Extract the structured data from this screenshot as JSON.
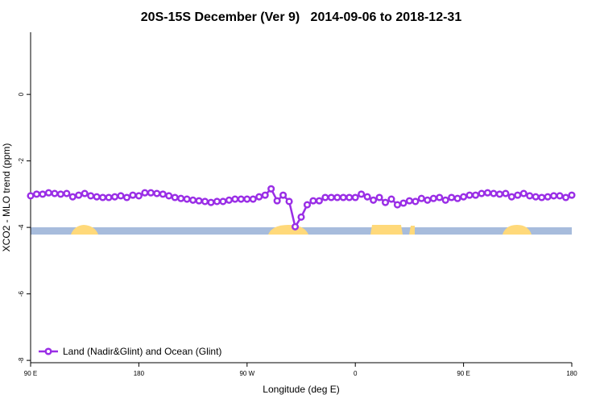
{
  "chart_data": {
    "type": "line",
    "title": "20S-15S December (Ver 9)   2014-09-06 to 2018-12-31",
    "x_label": "Longitude (deg E)",
    "y_label": "XCO2 - MLO trend (ppm)",
    "xlim": [
      90,
      540
    ],
    "xticks": [
      {
        "value": 90,
        "label": "90 E"
      },
      180,
      {
        "value": 270,
        "label": "90 W"
      },
      {
        "value": 360,
        "label": "0"
      },
      {
        "value": 450,
        "label": "90 E"
      },
      {
        "value": 540,
        "label": "180"
      }
    ],
    "ylim": [
      -8.07,
      1.87
    ],
    "yticks": [
      -8,
      -6,
      -4,
      -2,
      0
    ],
    "legend": "bottom-left",
    "x": [
      90,
      95,
      100,
      105,
      110,
      115,
      120,
      125,
      130,
      135,
      140,
      145,
      150,
      155,
      160,
      165,
      170,
      175,
      180,
      185,
      190,
      195,
      200,
      205,
      210,
      215,
      220,
      225,
      230,
      235,
      240,
      245,
      250,
      255,
      260,
      265,
      270,
      275,
      280,
      285,
      290,
      295,
      300,
      305,
      310,
      315,
      320,
      325,
      330,
      335,
      340,
      345,
      350,
      355,
      360,
      365,
      370,
      375,
      380,
      385,
      390,
      395,
      400,
      405,
      410,
      415,
      420,
      425,
      430,
      435,
      440,
      445,
      450,
      455,
      460,
      465,
      470,
      475,
      480,
      485,
      490,
      495,
      500,
      505,
      510,
      515,
      520,
      525,
      530,
      535,
      540
    ],
    "series": [
      {
        "name": "Land (Nadir&Glint) and Ocean (Glint)",
        "color": "#9a2ee6",
        "values": [
          -3.05,
          -3.0,
          -3.0,
          -2.96,
          -2.98,
          -3.0,
          -2.98,
          -3.08,
          -3.03,
          -2.98,
          -3.05,
          -3.08,
          -3.1,
          -3.1,
          -3.08,
          -3.05,
          -3.1,
          -3.03,
          -3.05,
          -2.96,
          -2.96,
          -2.98,
          -3.0,
          -3.05,
          -3.1,
          -3.13,
          -3.15,
          -3.18,
          -3.2,
          -3.22,
          -3.25,
          -3.22,
          -3.22,
          -3.18,
          -3.15,
          -3.15,
          -3.15,
          -3.15,
          -3.08,
          -3.03,
          -2.84,
          -3.2,
          -3.03,
          -3.22,
          -3.98,
          -3.69,
          -3.32,
          -3.2,
          -3.2,
          -3.1,
          -3.1,
          -3.1,
          -3.1,
          -3.1,
          -3.1,
          -3.0,
          -3.08,
          -3.18,
          -3.1,
          -3.25,
          -3.15,
          -3.32,
          -3.27,
          -3.2,
          -3.22,
          -3.13,
          -3.18,
          -3.13,
          -3.1,
          -3.18,
          -3.1,
          -3.13,
          -3.08,
          -3.03,
          -3.03,
          -2.98,
          -2.96,
          -2.98,
          -3.0,
          -2.98,
          -3.08,
          -3.03,
          -2.98,
          -3.05,
          -3.08,
          -3.1,
          -3.08,
          -3.05,
          -3.05,
          -3.1,
          -3.03
        ]
      }
    ]
  }
}
